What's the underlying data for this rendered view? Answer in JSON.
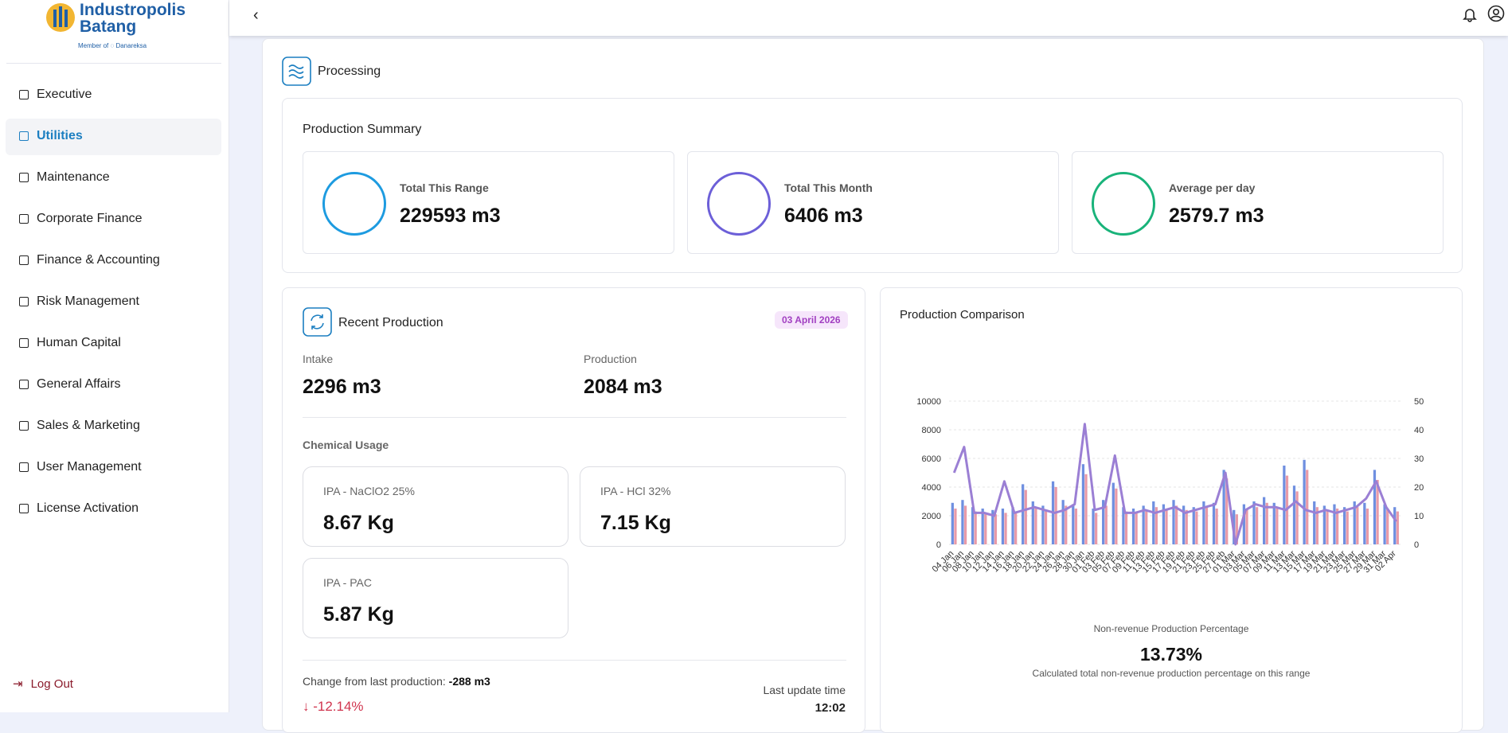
{
  "sidebar": {
    "logo_line1": "Industropolis",
    "logo_line2": "Batang",
    "logo_member": "Member of",
    "logo_partner": "Danareksa",
    "menu": [
      "Executive",
      "Utilities",
      "Maintenance",
      "Corporate Finance",
      "Finance & Accounting",
      "Risk Management",
      "Human Capital",
      "General Affairs",
      "Sales & Marketing",
      "User Management",
      "License Activation"
    ],
    "logout": "Log Out"
  },
  "section": {
    "title": "Processing"
  },
  "summary": {
    "title": "Production Summary",
    "cards": [
      {
        "label": "Total This Range",
        "value": "229593 m3"
      },
      {
        "label": "Total This Month",
        "value": "6406 m3"
      },
      {
        "label": "Average per day",
        "value": "2579.7 m3"
      }
    ]
  },
  "recent": {
    "title": "Recent Production",
    "date": "03 April 2026",
    "intake_label": "Intake",
    "intake_value": "2296 m3",
    "production_label": "Production",
    "production_value": "2084 m3",
    "chemical_title": "Chemical Usage",
    "chemicals": [
      {
        "name": "IPA - NaClO2 25%",
        "value": "8.67 Kg"
      },
      {
        "name": "IPA - HCl 32%",
        "value": "7.15 Kg"
      },
      {
        "name": "IPA - PAC",
        "value": "5.87 Kg"
      }
    ],
    "change_label": "Change from last production:",
    "change_value": "-288 m3",
    "change_percent": "-12.14%",
    "update_label": "Last update time",
    "update_time": "12:02"
  },
  "chart_data": {
    "type": "bar",
    "title": "Production Comparison",
    "categories": [
      "04 Jan",
      "06 Jan",
      "08 Jan",
      "10 Jan",
      "12 Jan",
      "14 Jan",
      "16 Jan",
      "18 Jan",
      "20 Jan",
      "22 Jan",
      "24 Jan",
      "26 Jan",
      "28 Jan",
      "30 Jan",
      "01 Feb",
      "03 Feb",
      "05 Feb",
      "07 Feb",
      "09 Feb",
      "11 Feb",
      "13 Feb",
      "15 Feb",
      "17 Feb",
      "19 Feb",
      "21 Feb",
      "23 Feb",
      "25 Feb",
      "27 Feb",
      "01 Mar",
      "03 Mar",
      "05 Mar",
      "07 Mar",
      "09 Mar",
      "11 Mar",
      "13 Mar",
      "15 Mar",
      "17 Mar",
      "19 Mar",
      "21 Mar",
      "23 Mar",
      "25 Mar",
      "27 Mar",
      "29 Mar",
      "31 Mar",
      "02 Apr"
    ],
    "series": [
      {
        "type": "bar",
        "color": "#6f8fe0",
        "values": [
          2900,
          3100,
          2600,
          2500,
          2400,
          2500,
          2600,
          4200,
          3000,
          2700,
          4400,
          3100,
          2800,
          5600,
          2500,
          3100,
          4300,
          2600,
          2500,
          2700,
          3000,
          2800,
          3100,
          2700,
          2600,
          3000,
          2900,
          5200,
          2400,
          2800,
          3000,
          3300,
          2900,
          5500,
          4100,
          5900,
          3000,
          2700,
          2800,
          2600,
          3000,
          2900,
          5200,
          2800,
          2600
        ]
      },
      {
        "type": "bar",
        "color": "#e89aa8",
        "values": [
          2500,
          2700,
          2300,
          2200,
          2100,
          2200,
          2300,
          3800,
          2600,
          2400,
          4000,
          2700,
          2500,
          4900,
          2200,
          2700,
          3900,
          2300,
          2200,
          2400,
          2600,
          2500,
          2700,
          2400,
          2300,
          2600,
          2500,
          4600,
          2100,
          2500,
          2600,
          2900,
          2500,
          4800,
          3700,
          5200,
          2600,
          2400,
          2500,
          2300,
          2600,
          2500,
          4500,
          2500,
          2300
        ]
      },
      {
        "type": "line",
        "axis": "y2",
        "color": "#9b7fd4",
        "values": [
          25,
          34,
          11,
          11,
          10,
          22,
          11,
          12,
          13,
          12,
          11,
          12,
          14,
          42,
          12,
          13,
          31,
          11,
          11,
          12,
          11,
          12,
          13,
          11,
          12,
          13,
          14,
          25,
          0,
          12,
          14,
          13,
          13,
          12,
          15,
          12,
          11,
          12,
          11,
          12,
          13,
          16,
          22,
          13,
          8
        ]
      }
    ],
    "ylim": [
      0,
      10000
    ],
    "yticks": [
      0,
      2000,
      4000,
      6000,
      8000,
      10000
    ],
    "y2lim": [
      0,
      50
    ],
    "y2ticks": [
      0,
      10,
      20,
      30,
      40,
      50
    ],
    "grid": true
  },
  "non_revenue": {
    "title": "Non-revenue Production Percentage",
    "value": "13.73%",
    "caption": "Calculated total non-revenue production percentage on this range"
  }
}
